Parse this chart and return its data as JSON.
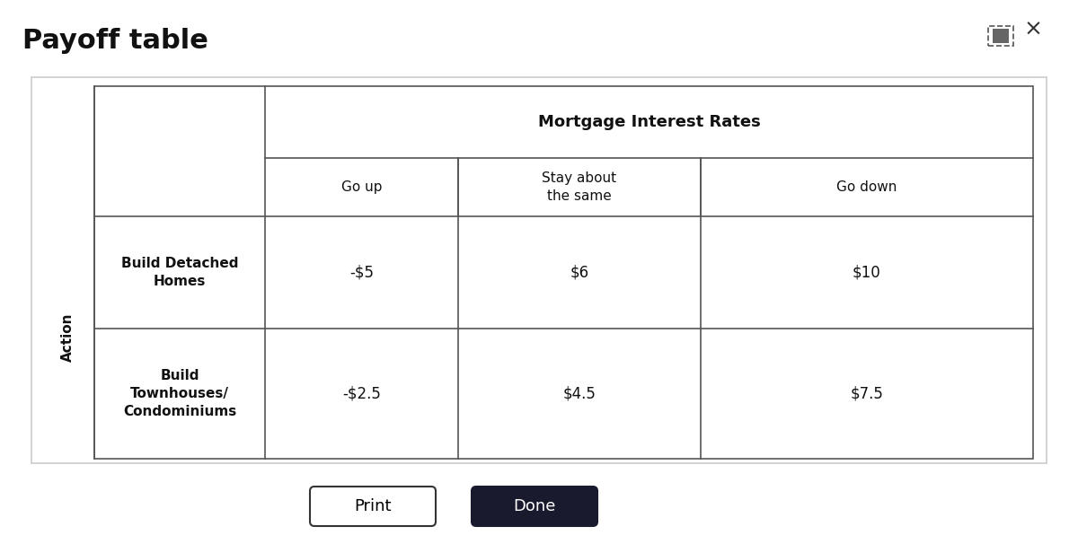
{
  "title": "Payoff table",
  "title_fontsize": 22,
  "title_fontweight": "bold",
  "bg_color": "#ffffff",
  "table_header": "Mortgage Interest Rates",
  "col_headers": [
    "Go up",
    "Stay about\nthe same",
    "Go down"
  ],
  "row_headers": [
    "Build Detached\nHomes",
    "Build\nTownhouses/\nCondominiums"
  ],
  "row_label": "Action",
  "data": [
    [
      "-$5",
      "$6",
      "$10"
    ],
    [
      "-$2.5",
      "$4.5",
      "$7.5"
    ]
  ],
  "print_label": "Print",
  "done_label": "Done",
  "print_btn_color": "#ffffff",
  "done_btn_color": "#1a1a2e",
  "print_text_color": "#000000",
  "done_text_color": "#ffffff",
  "outer_box_color": "#cccccc",
  "table_line_color": "#555555"
}
